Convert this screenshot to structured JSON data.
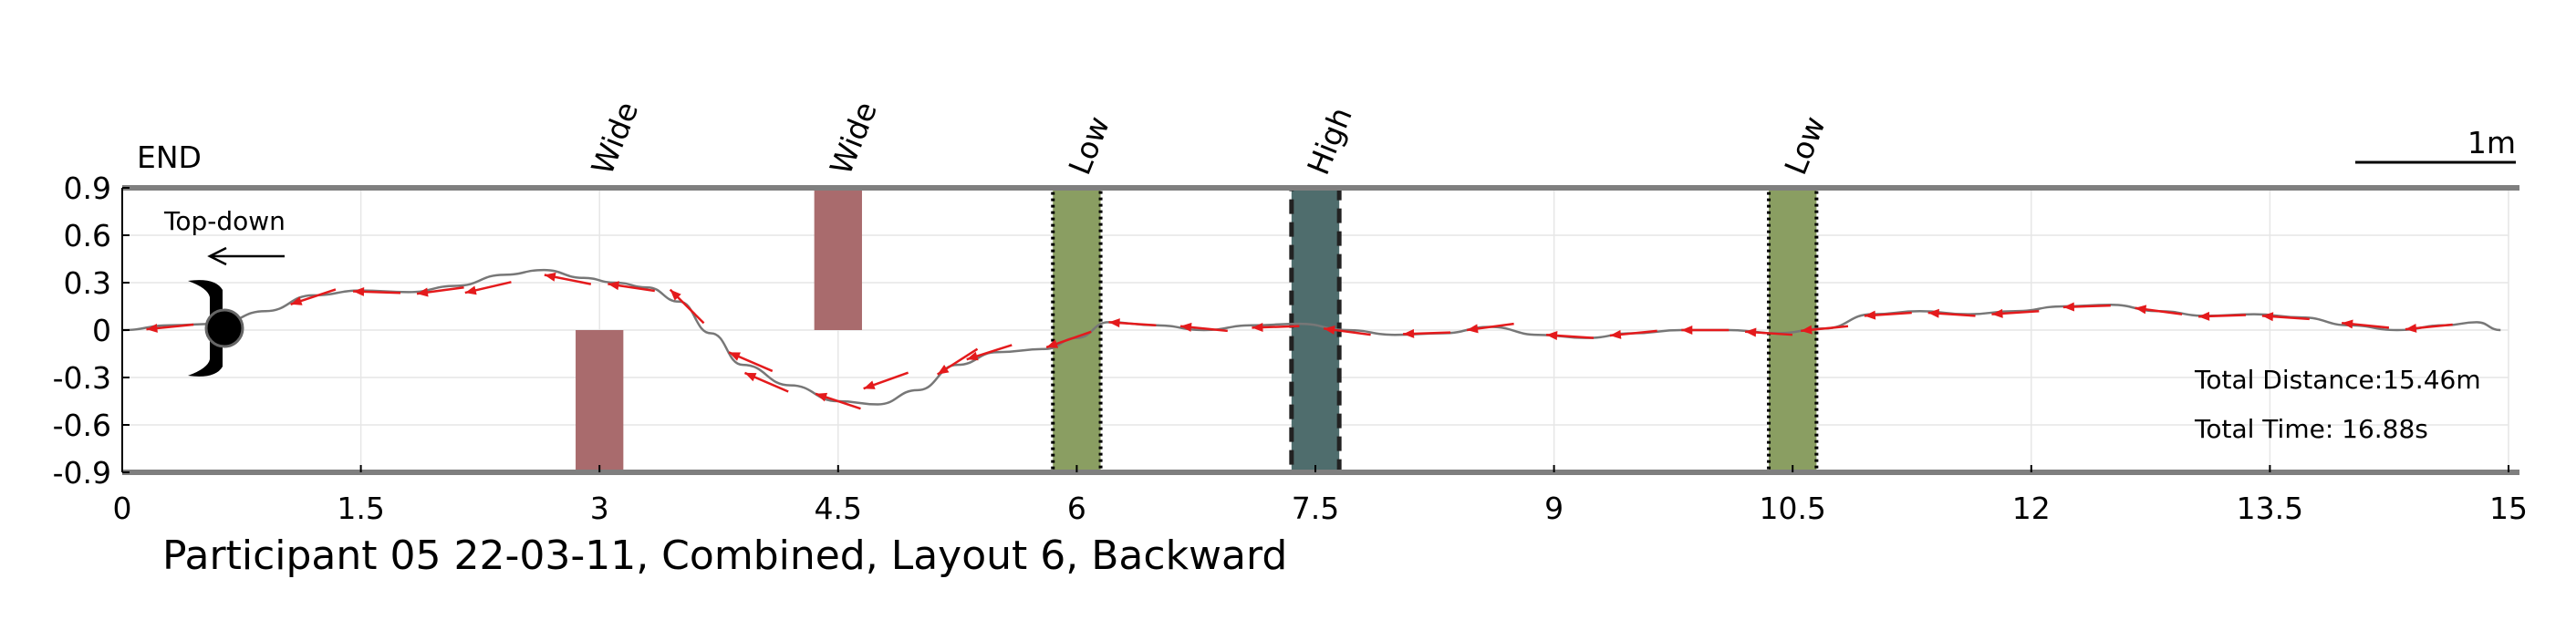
{
  "chart_data": {
    "type": "line",
    "title": "Participant 05 22-03-11, Combined, Layout 6, Backward",
    "xlabel": "",
    "ylabel": "",
    "xlim": [
      0,
      15
    ],
    "ylim": [
      -0.9,
      0.9
    ],
    "x_ticks": [
      "0",
      "1.5",
      "3",
      "4.5",
      "6",
      "7.5",
      "9",
      "10.5",
      "12",
      "13.5",
      "15"
    ],
    "y_ticks": [
      "0.9",
      "0.6",
      "0.3",
      "0",
      "-0.3",
      "-0.6",
      "-0.9"
    ],
    "grid": true,
    "colors": {
      "path": "#777777",
      "arrows": "#e41a1c",
      "wide": "#a96b6d",
      "low": "#8a9e62",
      "high": "#4f6d6d",
      "border": "#7f7f7f"
    },
    "end_label": "END",
    "top_down_label": "Top-down",
    "scale_bar_label": "1m",
    "total_distance": "Total Distance:15.46m",
    "total_time": "Total Time: 16.88s",
    "obstacles": [
      {
        "label": "Wide",
        "type": "wide",
        "x0": 2.85,
        "x1": 3.15,
        "y0": -0.9,
        "y1": 0.0
      },
      {
        "label": "Wide",
        "type": "wide",
        "x0": 4.35,
        "x1": 4.65,
        "y0": 0.0,
        "y1": 0.9
      },
      {
        "label": "Low",
        "type": "low",
        "x0": 5.85,
        "x1": 6.15,
        "y0": -0.9,
        "y1": 0.9
      },
      {
        "label": "High",
        "type": "high",
        "x0": 7.35,
        "x1": 7.65,
        "y0": -0.9,
        "y1": 0.9
      },
      {
        "label": "Low",
        "type": "low",
        "x0": 10.35,
        "x1": 10.65,
        "y0": -0.9,
        "y1": 0.9
      }
    ],
    "path": {
      "x": [
        0.0,
        0.3,
        0.6,
        0.9,
        1.2,
        1.5,
        1.8,
        2.1,
        2.4,
        2.65,
        2.9,
        3.1,
        3.3,
        3.5,
        3.7,
        3.9,
        4.2,
        4.5,
        4.75,
        5.0,
        5.25,
        5.5,
        5.8,
        6.0,
        6.2,
        6.5,
        6.8,
        7.1,
        7.4,
        7.7,
        8.0,
        8.3,
        8.6,
        8.9,
        9.2,
        9.5,
        9.8,
        10.1,
        10.4,
        10.7,
        11.0,
        11.3,
        11.6,
        11.9,
        12.2,
        12.5,
        12.8,
        13.1,
        13.4,
        13.7,
        14.0,
        14.3,
        14.6,
        14.8,
        14.95
      ],
      "y": [
        0.0,
        0.03,
        0.04,
        0.12,
        0.22,
        0.25,
        0.24,
        0.28,
        0.35,
        0.38,
        0.33,
        0.3,
        0.27,
        0.18,
        -0.02,
        -0.22,
        -0.35,
        -0.45,
        -0.47,
        -0.38,
        -0.22,
        -0.14,
        -0.12,
        -0.05,
        0.05,
        0.03,
        0.0,
        0.03,
        0.04,
        0.0,
        -0.03,
        -0.02,
        0.02,
        -0.03,
        -0.05,
        -0.02,
        0.0,
        0.0,
        -0.02,
        0.01,
        0.1,
        0.12,
        0.1,
        0.12,
        0.15,
        0.16,
        0.12,
        0.09,
        0.1,
        0.08,
        0.03,
        0.0,
        0.03,
        0.05,
        0.0
      ]
    },
    "arrows": [
      {
        "x": 0.3,
        "y": 0.02
      },
      {
        "x": 1.2,
        "y": 0.21
      },
      {
        "x": 1.6,
        "y": 0.24
      },
      {
        "x": 2.0,
        "y": 0.25
      },
      {
        "x": 2.3,
        "y": 0.27
      },
      {
        "x": 2.8,
        "y": 0.32
      },
      {
        "x": 3.2,
        "y": 0.27
      },
      {
        "x": 3.55,
        "y": 0.15
      },
      {
        "x": 3.95,
        "y": -0.2
      },
      {
        "x": 4.05,
        "y": -0.33
      },
      {
        "x": 4.5,
        "y": -0.45
      },
      {
        "x": 4.8,
        "y": -0.32
      },
      {
        "x": 5.25,
        "y": -0.2
      },
      {
        "x": 5.45,
        "y": -0.14
      },
      {
        "x": 5.95,
        "y": -0.06
      },
      {
        "x": 6.35,
        "y": 0.04
      },
      {
        "x": 6.8,
        "y": 0.01
      },
      {
        "x": 7.25,
        "y": 0.02
      },
      {
        "x": 7.7,
        "y": -0.01
      },
      {
        "x": 8.2,
        "y": -0.02
      },
      {
        "x": 8.6,
        "y": 0.02
      },
      {
        "x": 9.1,
        "y": -0.04
      },
      {
        "x": 9.5,
        "y": -0.02
      },
      {
        "x": 9.95,
        "y": 0.0
      },
      {
        "x": 10.35,
        "y": -0.02
      },
      {
        "x": 10.7,
        "y": 0.01
      },
      {
        "x": 11.1,
        "y": 0.1
      },
      {
        "x": 11.5,
        "y": 0.1
      },
      {
        "x": 11.9,
        "y": 0.11
      },
      {
        "x": 12.35,
        "y": 0.15
      },
      {
        "x": 12.8,
        "y": 0.12
      },
      {
        "x": 13.2,
        "y": 0.09
      },
      {
        "x": 13.6,
        "y": 0.08
      },
      {
        "x": 14.1,
        "y": 0.03
      },
      {
        "x": 14.5,
        "y": 0.02
      }
    ]
  }
}
